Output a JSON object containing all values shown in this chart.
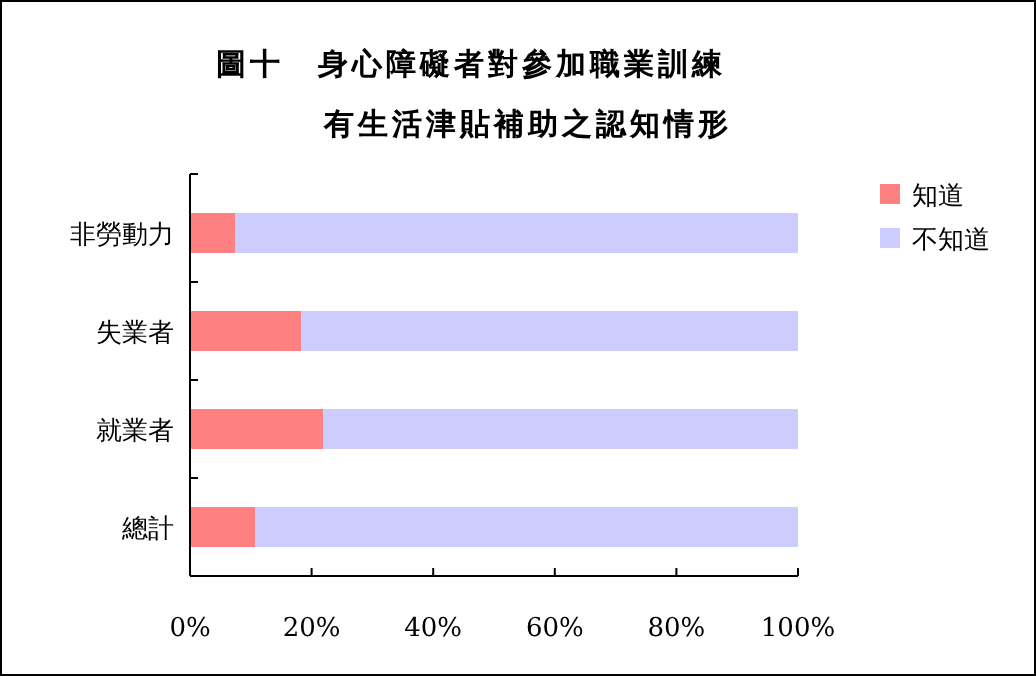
{
  "chart_data": {
    "type": "bar",
    "orientation": "horizontal",
    "stacked": true,
    "title": "圖十　身心障礙者對參加職業訓練",
    "subtitle": "有生活津貼補助之認知情形",
    "categories": [
      "非勞動力",
      "失業者",
      "就業者",
      "總計"
    ],
    "series": [
      {
        "name": "知道",
        "color": "#ff8080",
        "values": [
          7.4,
          18.3,
          21.9,
          10.7
        ]
      },
      {
        "name": "不知道",
        "color": "#ccccff",
        "values": [
          92.6,
          81.7,
          78.1,
          89.3
        ]
      }
    ],
    "xlim": [
      0,
      100
    ],
    "xticks": [
      {
        "value": 0,
        "label": "0%"
      },
      {
        "value": 20,
        "label": "20%"
      },
      {
        "value": 40,
        "label": "40%"
      },
      {
        "value": 60,
        "label": "60%"
      },
      {
        "value": 80,
        "label": "80%"
      },
      {
        "value": 100,
        "label": "100%"
      }
    ],
    "grid": false,
    "legend": "right"
  }
}
